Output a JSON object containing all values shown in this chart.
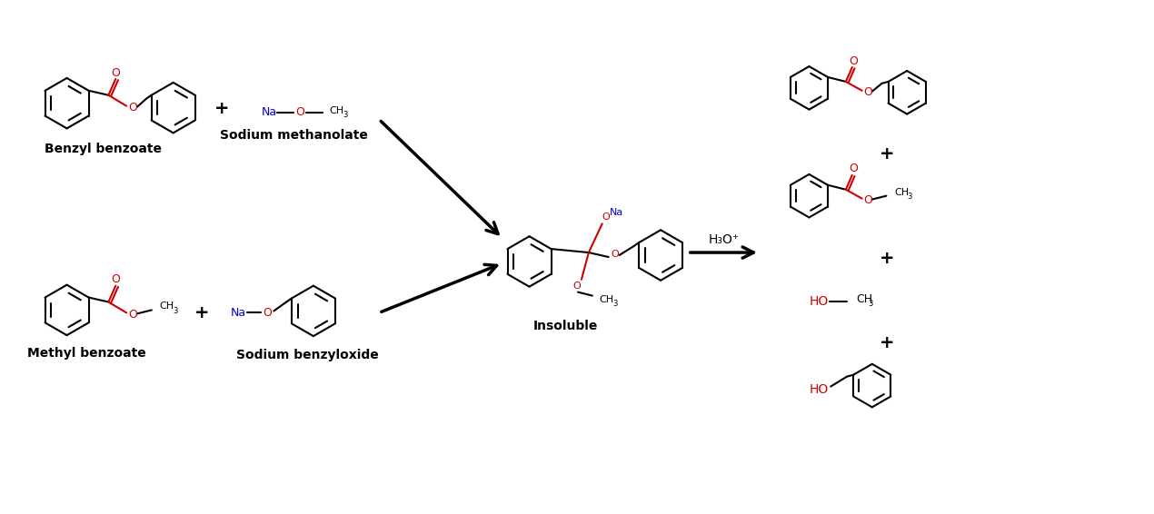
{
  "bg_color": "#ffffff",
  "black": "#000000",
  "red": "#cc0000",
  "blue": "#0000cc",
  "figsize": [
    12.7,
    5.66
  ],
  "dpi": 100,
  "labels": {
    "benzyl_benzoate": "Benzyl benzoate",
    "sodium_methanolate": "Sodium methanolate",
    "methyl_benzoate": "Methyl benzoate",
    "sodium_benzyloxide": "Sodium benzyloxide",
    "insoluble": "Insoluble",
    "plus": "+"
  }
}
